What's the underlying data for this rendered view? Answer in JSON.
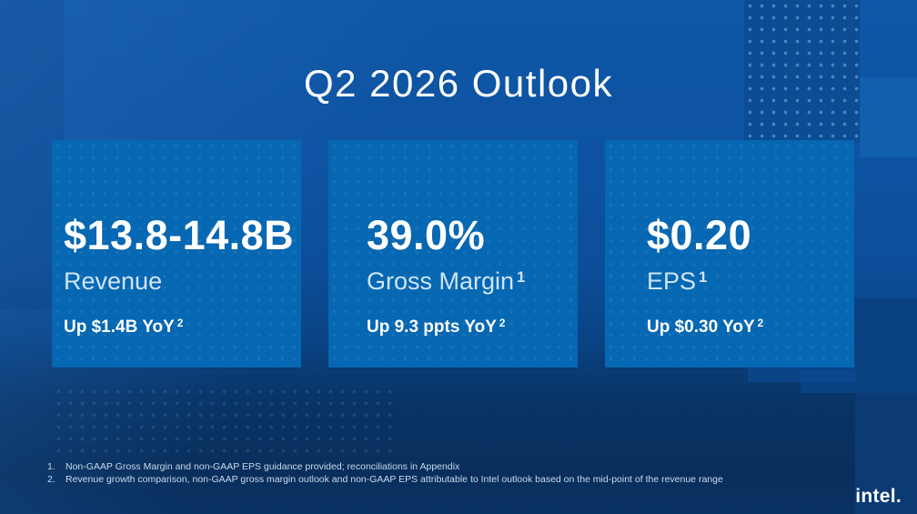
{
  "slide": {
    "title": "Q2 2026 Outlook",
    "cards": [
      {
        "value": "$13.8-14.8B",
        "label": "Revenue",
        "label_sup": "",
        "delta": "Up $1.4B YoY",
        "delta_sup": "2"
      },
      {
        "value": "39.0%",
        "label": "Gross Margin",
        "label_sup": "1",
        "delta": "Up 9.3 ppts YoY",
        "delta_sup": "2"
      },
      {
        "value": "$0.20",
        "label": "EPS",
        "label_sup": "1",
        "delta": "Up $0.30 YoY",
        "delta_sup": "2"
      }
    ],
    "footnotes": [
      {
        "num": "1.",
        "text": "Non-GAAP Gross Margin and non-GAAP EPS guidance provided; reconciliations in Appendix"
      },
      {
        "num": "2.",
        "text": "Revenue growth comparison, non-GAAP gross margin outlook and non-GAAP EPS attributable to Intel outlook based on the mid-point of the revenue range"
      }
    ],
    "logo_text": "intel.",
    "colors": {
      "card_blue": "#0667b2",
      "background_top_blue": "#0f57a6",
      "background_bottom_navy": "#092e5b",
      "title_white": "#ffffff",
      "label_light_blue": "#cfe4f6",
      "footnote_light_blue": "#c7daed"
    }
  }
}
